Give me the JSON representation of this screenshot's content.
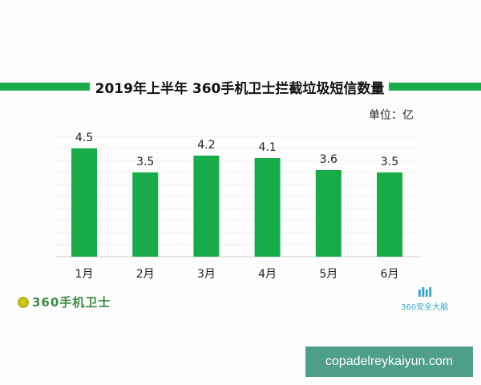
{
  "chart_data": {
    "type": "bar",
    "title": "2019年上半年 360手机卫士拦截垃圾短信数量",
    "unit_label": "单位：亿",
    "categories": [
      "1月",
      "2月",
      "3月",
      "4月",
      "5月",
      "6月"
    ],
    "values": [
      4.5,
      3.5,
      4.2,
      4.1,
      3.6,
      3.5
    ],
    "data_labels": [
      "4.5",
      "3.5",
      "4.2",
      "4.1",
      "3.6",
      "3.5"
    ],
    "ylim": [
      0,
      5
    ],
    "grid": true,
    "bar_color": "#19ab4a",
    "accent_color": "#19ab4a"
  },
  "logos": {
    "left": "360手机卫士",
    "right": "360安全大脑"
  },
  "watermark": "copadelreykaiyun.com"
}
